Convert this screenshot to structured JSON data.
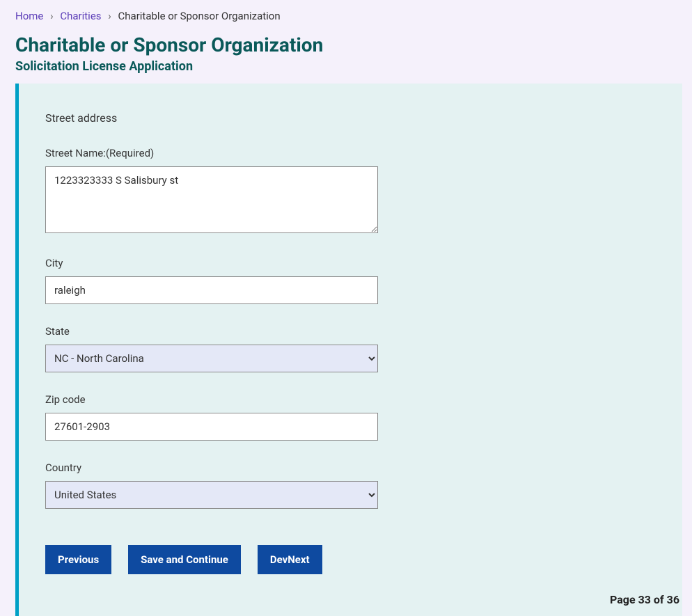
{
  "breadcrumb": {
    "home": "Home",
    "charities": "Charities",
    "current": "Charitable or Sponsor Organization"
  },
  "page": {
    "title": "Charitable or Sponsor Organization",
    "subtitle": "Solicitation License Application"
  },
  "form": {
    "section_heading": "Street address",
    "street_name": {
      "label": "Street Name:(Required)",
      "value": "1223323333 S Salisbury st"
    },
    "city": {
      "label": "City",
      "value": "raleigh"
    },
    "state": {
      "label": "State",
      "selected": "NC - North Carolina"
    },
    "zip": {
      "label": "Zip code",
      "value": "27601-2903"
    },
    "country": {
      "label": "Country",
      "selected": "United States"
    }
  },
  "buttons": {
    "previous": "Previous",
    "save_continue": "Save and Continue",
    "devnext": "DevNext"
  },
  "pagination": {
    "text": "Page 33 of 36"
  }
}
